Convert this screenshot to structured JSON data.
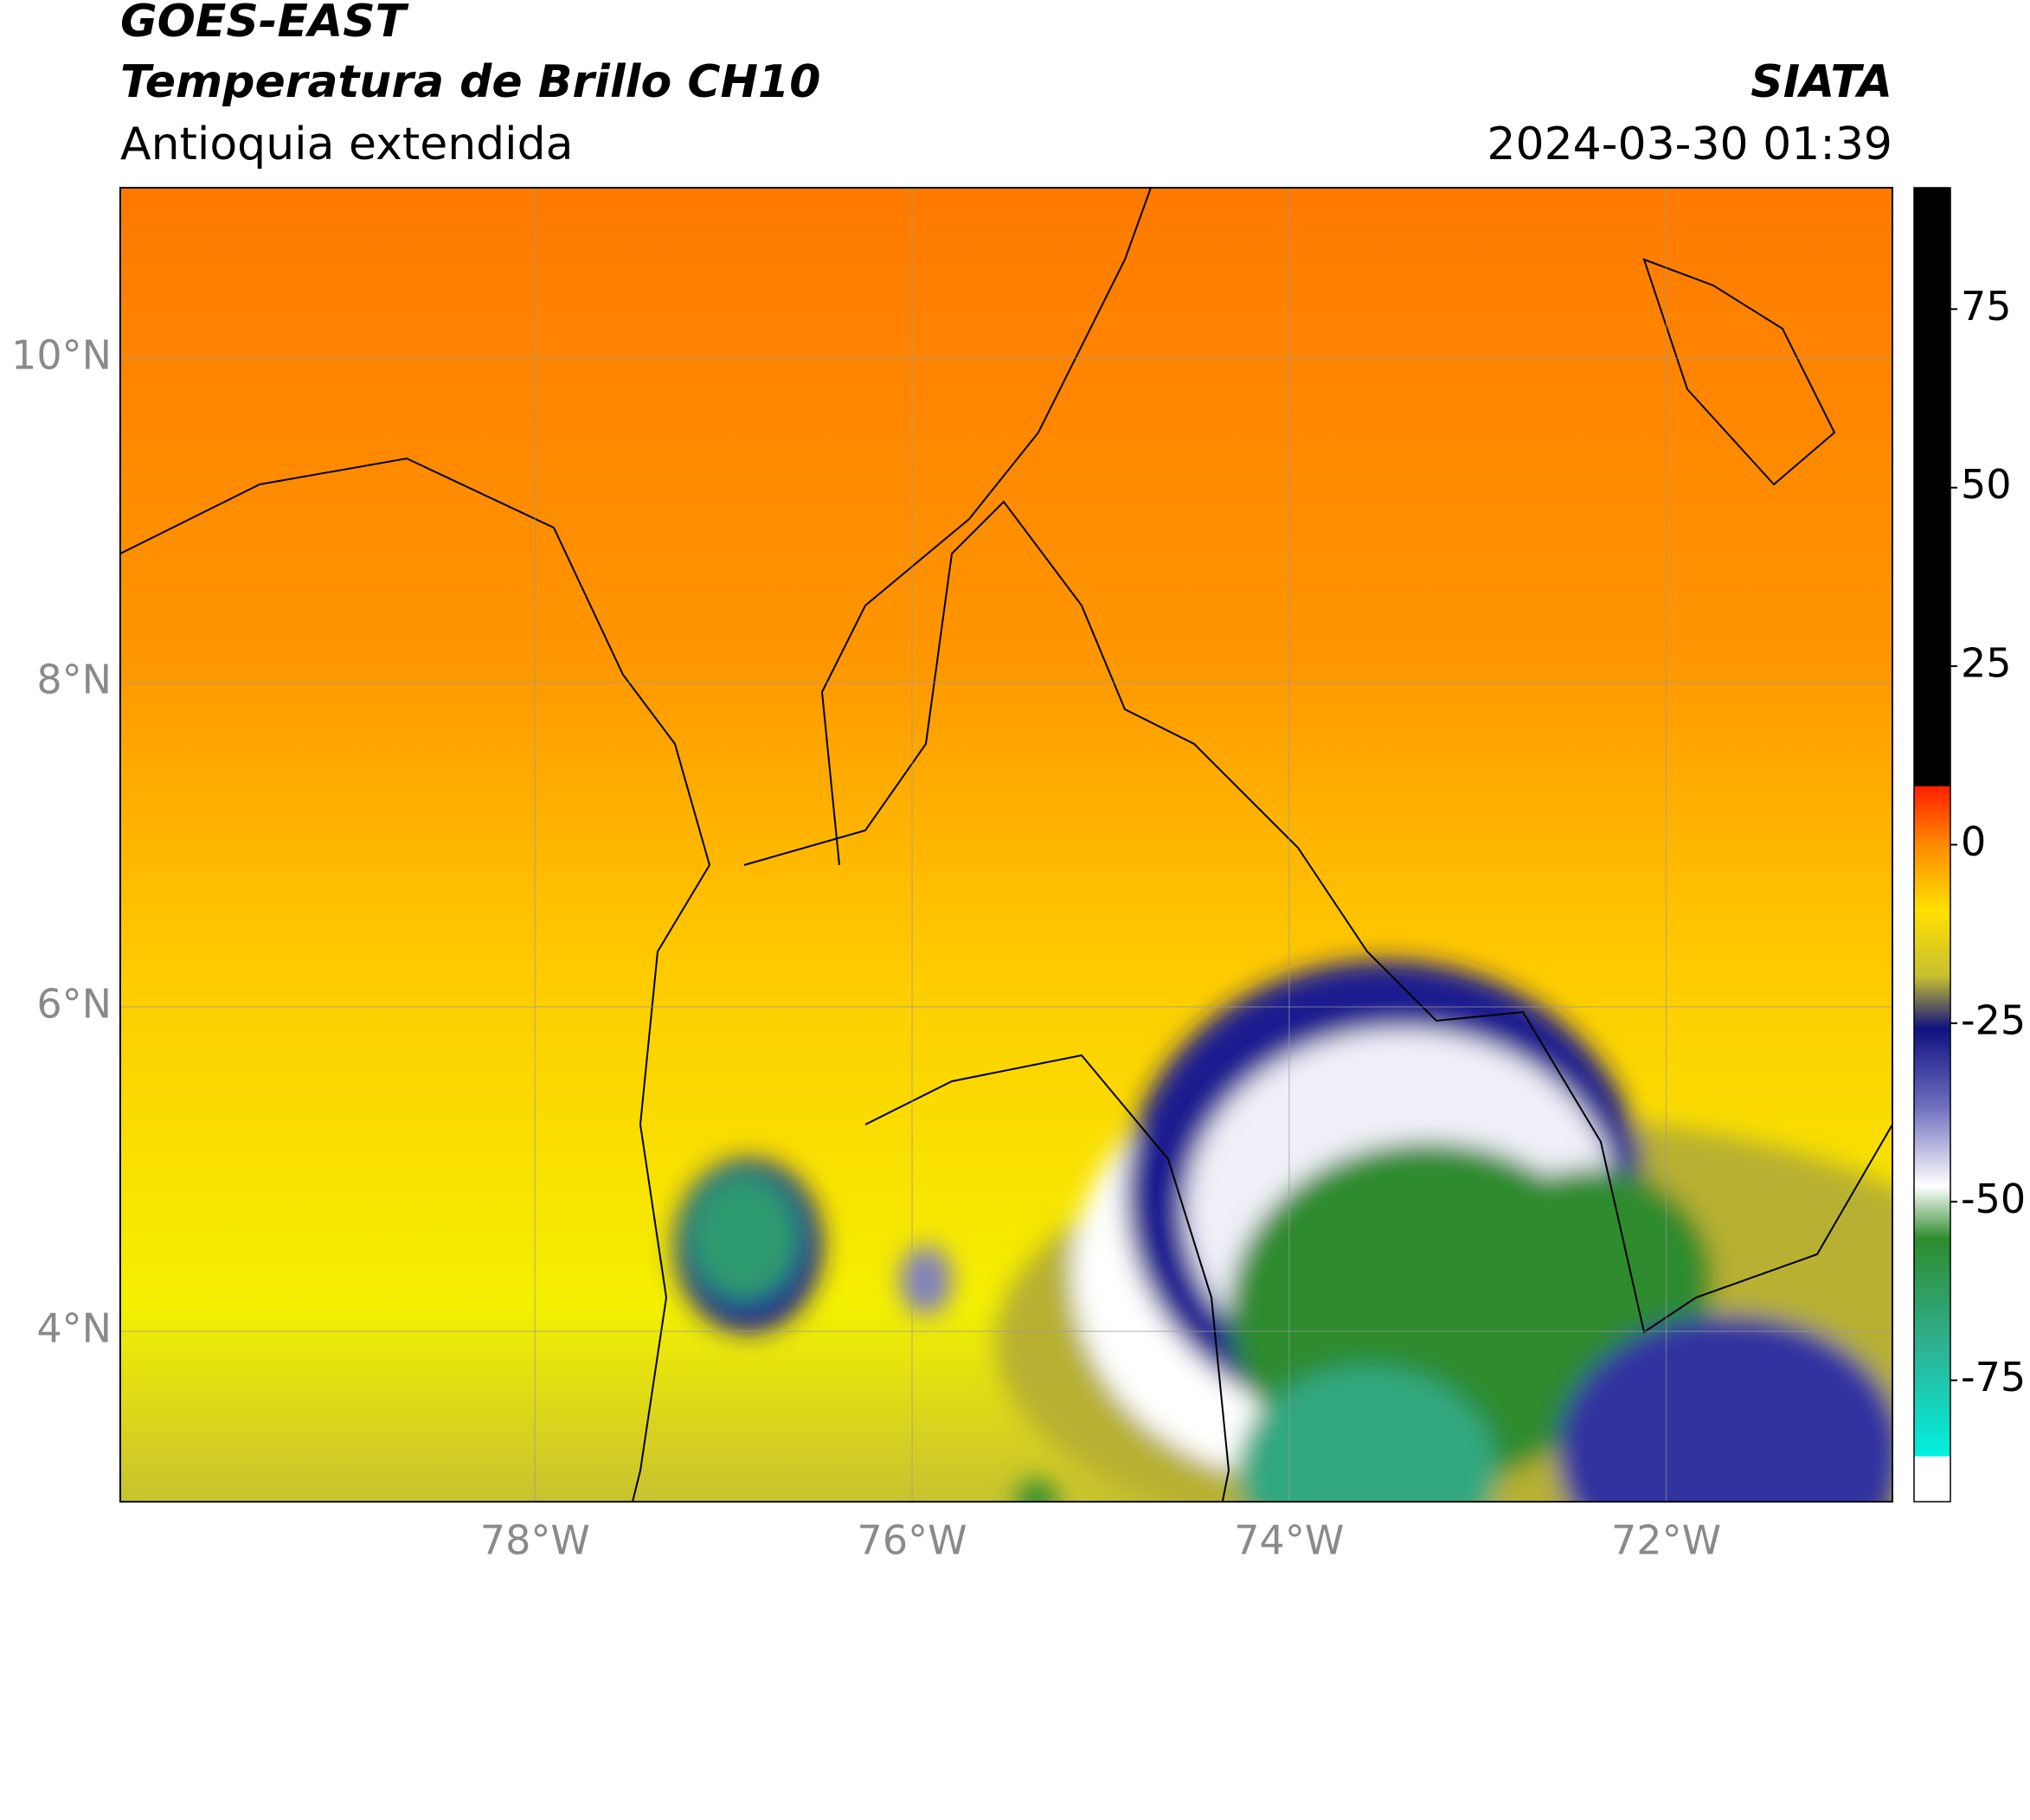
{
  "header": {
    "satellite": "GOES-EAST",
    "product": "Temperatura de Brillo CH10",
    "region": "Antioquia extendida",
    "source": "SIATA",
    "timestamp": "2024-03-30 01:39"
  },
  "map": {
    "xlim": [
      -80.2,
      -70.8
    ],
    "ylim": [
      2.95,
      11.05
    ],
    "xticks": [
      {
        "value": -78,
        "label": "78°W"
      },
      {
        "value": -76,
        "label": "76°W"
      },
      {
        "value": -74,
        "label": "74°W"
      },
      {
        "value": -72,
        "label": "72°W"
      }
    ],
    "yticks": [
      {
        "value": 10,
        "label": "10°N"
      },
      {
        "value": 8,
        "label": "8°N"
      },
      {
        "value": 6,
        "label": "6°N"
      },
      {
        "value": 4,
        "label": "4°N"
      }
    ],
    "grid": true
  },
  "colorbar": {
    "lim": [
      -92,
      92
    ],
    "ticks": [
      75,
      50,
      25,
      0,
      -25,
      -50,
      -75
    ]
  }
}
